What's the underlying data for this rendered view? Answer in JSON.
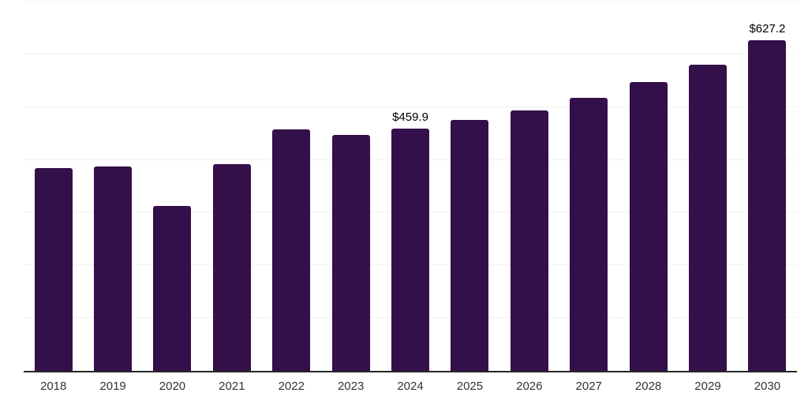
{
  "chart_data": {
    "type": "bar",
    "title": "",
    "xlabel": "",
    "ylabel": "",
    "categories": [
      "2018",
      "2019",
      "2020",
      "2021",
      "2022",
      "2023",
      "2024",
      "2025",
      "2026",
      "2027",
      "2028",
      "2029",
      "2030"
    ],
    "values": [
      384,
      387,
      312,
      392,
      458,
      447,
      459.9,
      475,
      494,
      518,
      548,
      581,
      627.2
    ],
    "data_labels": {
      "2024": "$459.9",
      "2030": "$627.2"
    },
    "ylim": [
      0,
      700
    ],
    "grid_step": 100,
    "grid": true,
    "legend": false,
    "y_tick_labels_visible": false,
    "bar_color": "#33104A",
    "gridline_color": "#f2f2f2",
    "axis_line_color": "#262626",
    "tick_label_color": "#333333",
    "data_label_color": "#000000",
    "background_color": "#ffffff"
  }
}
